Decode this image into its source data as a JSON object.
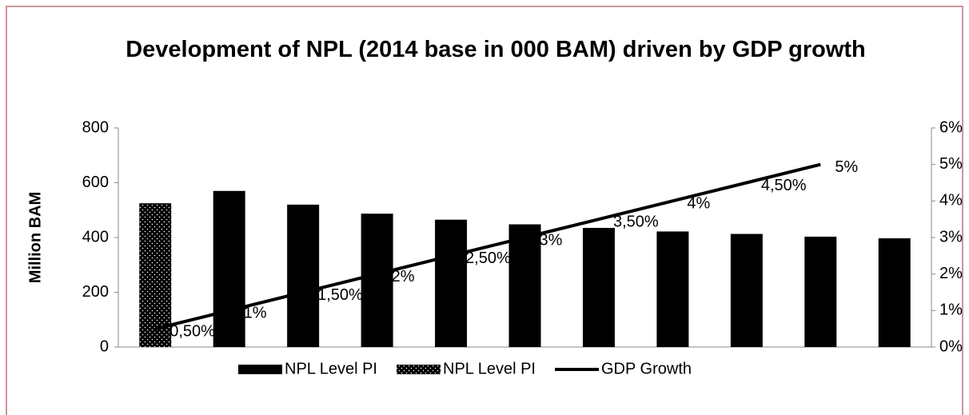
{
  "chart_data": {
    "type": "bar_line",
    "title": "Development of NPL (2014 base in 000 BAM) driven by GDP growth",
    "ylabel": "Million BAM",
    "categories": [
      null,
      null,
      null,
      null,
      null,
      null,
      null,
      null,
      null,
      null,
      null
    ],
    "series": [
      {
        "name": "NPL Level PI",
        "color": "#000000",
        "pattern": "solid",
        "values": [
          null,
          570,
          520,
          487,
          465,
          448,
          435,
          422,
          413,
          403,
          397
        ]
      },
      {
        "name": "NPL Level PI",
        "color": "#000000",
        "pattern": "dotted",
        "values": [
          525,
          null,
          null,
          null,
          null,
          null,
          null,
          null,
          null,
          null,
          null
        ]
      },
      {
        "name": "GDP Growth",
        "type": "line",
        "axis": "y2",
        "color": "#000000",
        "values": [
          0.5,
          1,
          1.5,
          2,
          2.5,
          3,
          3.5,
          4,
          4.5,
          5,
          null
        ],
        "value_labels": [
          "0,50%",
          "1%",
          "1,50%",
          "2%",
          "2,50%",
          "3%",
          "3,50%",
          "4%",
          "4,50%",
          "5%",
          null
        ]
      }
    ],
    "ylim": [
      0,
      800
    ],
    "yticks": [
      0,
      200,
      400,
      600,
      800
    ],
    "y2lim": [
      0,
      6
    ],
    "y2ticks": [
      {
        "value": 0,
        "label": "0%"
      },
      {
        "value": 1,
        "label": "1%"
      },
      {
        "value": 2,
        "label": "2%"
      },
      {
        "value": 3,
        "label": "3%"
      },
      {
        "value": 4,
        "label": "4%"
      },
      {
        "value": 5,
        "label": "5%"
      },
      {
        "value": 6,
        "label": "6%"
      }
    ],
    "legend": "bottom"
  }
}
